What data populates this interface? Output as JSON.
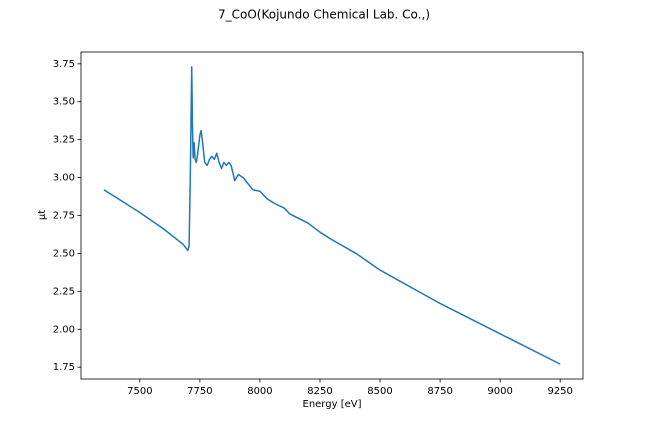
{
  "chart_data": {
    "type": "line",
    "title": "7_CoO(Kojundo Chemical Lab. Co.,)",
    "xlabel": "Energy [eV]",
    "ylabel": "μt",
    "color": "#1f77b4",
    "x": [
      7350,
      7400,
      7500,
      7600,
      7680,
      7700,
      7705,
      7710,
      7716,
      7719,
      7722,
      7726,
      7730,
      7735,
      7740,
      7750,
      7755,
      7760,
      7770,
      7780,
      7790,
      7800,
      7810,
      7820,
      7830,
      7840,
      7850,
      7860,
      7870,
      7880,
      7895,
      7910,
      7930,
      7950,
      7970,
      8000,
      8030,
      8060,
      8100,
      8125,
      8150,
      8200,
      8250,
      8300,
      8400,
      8500,
      8750,
      9000,
      9250
    ],
    "values": [
      2.92,
      2.87,
      2.77,
      2.66,
      2.56,
      2.52,
      2.55,
      3.0,
      3.73,
      3.35,
      3.13,
      3.23,
      3.12,
      3.1,
      3.15,
      3.28,
      3.31,
      3.25,
      3.1,
      3.08,
      3.12,
      3.14,
      3.12,
      3.16,
      3.1,
      3.06,
      3.1,
      3.08,
      3.1,
      3.08,
      2.98,
      3.02,
      3.0,
      2.96,
      2.92,
      2.91,
      2.86,
      2.83,
      2.8,
      2.76,
      2.74,
      2.7,
      2.64,
      2.59,
      2.5,
      2.39,
      2.17,
      1.97,
      1.77
    ],
    "xlim": [
      7255,
      9345
    ],
    "ylim": [
      1.672,
      3.828
    ],
    "xticks": [
      7500,
      7750,
      8000,
      8250,
      8500,
      8750,
      9000,
      9250
    ],
    "yticks": [
      {
        "value": 1.75,
        "label": "1.75"
      },
      {
        "value": 2.0,
        "label": "2.00"
      },
      {
        "value": 2.25,
        "label": "2.25"
      },
      {
        "value": 2.5,
        "label": "2.50"
      },
      {
        "value": 2.75,
        "label": "2.75"
      },
      {
        "value": 3.0,
        "label": "3.00"
      },
      {
        "value": 3.25,
        "label": "3.25"
      },
      {
        "value": 3.5,
        "label": "3.50"
      },
      {
        "value": 3.75,
        "label": "3.75"
      }
    ]
  }
}
